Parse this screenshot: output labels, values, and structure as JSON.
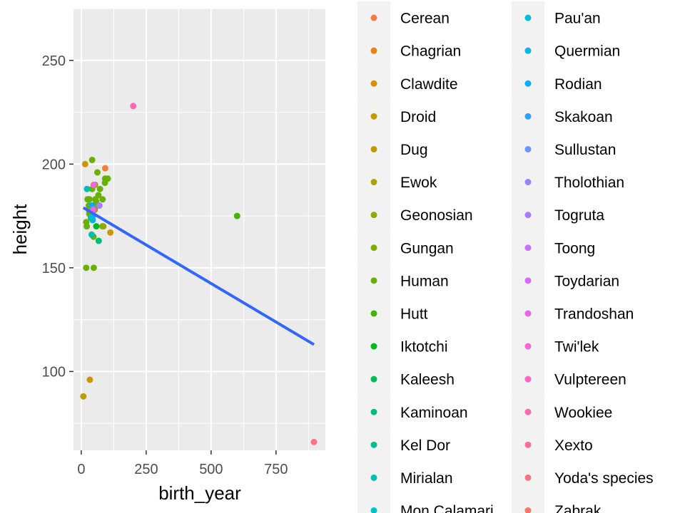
{
  "chart_data": {
    "type": "scatter",
    "xlabel": "birth_year",
    "ylabel": "height",
    "xlim": [
      -30,
      940
    ],
    "ylim": [
      62,
      275
    ],
    "x_ticks": [
      0,
      250,
      500,
      750
    ],
    "y_ticks": [
      100,
      150,
      200,
      250
    ],
    "grid": true,
    "panel_background": "#EBEBEB",
    "grid_color": "#FFFFFF",
    "legend_position": "right",
    "legend_ncol": 2,
    "legend": [
      {
        "name": "Cerean",
        "color": "#F07F44"
      },
      {
        "name": "Chagrian",
        "color": "#E88512"
      },
      {
        "name": "Clawdite",
        "color": "#DA8E00"
      },
      {
        "name": "Droid",
        "color": "#CC9600"
      },
      {
        "name": "Dug",
        "color": "#BC9D00"
      },
      {
        "name": "Ewok",
        "color": "#ABA300"
      },
      {
        "name": "Geonosian",
        "color": "#98A800"
      },
      {
        "name": "Gungan",
        "color": "#82AD00"
      },
      {
        "name": "Human",
        "color": "#68B100"
      },
      {
        "name": "Hutt",
        "color": "#40B400"
      },
      {
        "name": "Iktotchi",
        "color": "#00B81F"
      },
      {
        "name": "Kaleesh",
        "color": "#00BA55"
      },
      {
        "name": "Kaminoan",
        "color": "#00BC76"
      },
      {
        "name": "Kel Dor",
        "color": "#00BE93"
      },
      {
        "name": "Mirialan",
        "color": "#00BFAD"
      },
      {
        "name": "Mon Calamari",
        "color": "#00C0C4"
      },
      {
        "name": "Pau'an",
        "color": "#00BDD9"
      },
      {
        "name": "Quermian",
        "color": "#00B7EA"
      },
      {
        "name": "Rodian",
        "color": "#00AFF7"
      },
      {
        "name": "Skakoan",
        "color": "#29A3FF"
      },
      {
        "name": "Sullustan",
        "color": "#6B95FF"
      },
      {
        "name": "Tholothian",
        "color": "#8F88FF"
      },
      {
        "name": "Togruta",
        "color": "#AC7CFF"
      },
      {
        "name": "Toong",
        "color": "#C472FF"
      },
      {
        "name": "Toydarian",
        "color": "#D86BF5"
      },
      {
        "name": "Trandoshan",
        "color": "#E867E8"
      },
      {
        "name": "Twi'lek",
        "color": "#F466D8"
      },
      {
        "name": "Vulptereen",
        "color": "#FB66C6"
      },
      {
        "name": "Wookiee",
        "color": "#FF68B2"
      },
      {
        "name": "Xexto",
        "color": "#FF6C9C"
      },
      {
        "name": "Yoda's species",
        "color": "#FC7284"
      },
      {
        "name": "Zabrak",
        "color": "#F7786A"
      }
    ],
    "points": [
      {
        "x": 19,
        "y": 172,
        "color": "#68B100"
      },
      {
        "x": 112,
        "y": 167,
        "color": "#CC9600"
      },
      {
        "x": 33,
        "y": 96,
        "color": "#CC9600"
      },
      {
        "x": 41.9,
        "y": 202,
        "color": "#68B100"
      },
      {
        "x": 19,
        "y": 150,
        "color": "#68B100"
      },
      {
        "x": 52,
        "y": 178,
        "color": "#68B100"
      },
      {
        "x": 47,
        "y": 165,
        "color": "#68B100"
      },
      {
        "x": 24,
        "y": 183,
        "color": "#68B100"
      },
      {
        "x": 57,
        "y": 182,
        "color": "#68B100"
      },
      {
        "x": 41.9,
        "y": 188,
        "color": "#68B100"
      },
      {
        "x": 64,
        "y": 180,
        "color": "#68B100"
      },
      {
        "x": 200,
        "y": 228,
        "color": "#FF68B2"
      },
      {
        "x": 29,
        "y": 180,
        "color": "#68B100"
      },
      {
        "x": 44,
        "y": 173,
        "color": "#00AFF7"
      },
      {
        "x": 600,
        "y": 175,
        "color": "#40B400"
      },
      {
        "x": 21,
        "y": 170,
        "color": "#68B100"
      },
      {
        "x": 896,
        "y": 66,
        "color": "#FC7284"
      },
      {
        "x": 82,
        "y": 170,
        "color": "#68B100"
      },
      {
        "x": 31.5,
        "y": 183,
        "color": "#68B100"
      },
      {
        "x": 15,
        "y": 200,
        "color": "#CC9600"
      },
      {
        "x": 53,
        "y": 190,
        "color": "#68B100"
      },
      {
        "x": 31,
        "y": 177,
        "color": "#68B100"
      },
      {
        "x": 37,
        "y": 175,
        "color": "#68B100"
      },
      {
        "x": 41,
        "y": 180,
        "color": "#00AFF7"
      },
      {
        "x": 48,
        "y": 150,
        "color": "#68B100"
      },
      {
        "x": 8,
        "y": 88,
        "color": "#BC9D00"
      },
      {
        "x": 92,
        "y": 193,
        "color": "#68B100"
      },
      {
        "x": 91,
        "y": 191,
        "color": "#68B100"
      },
      {
        "x": 62,
        "y": 196,
        "color": "#68B100"
      },
      {
        "x": 72,
        "y": 188,
        "color": "#68B100"
      },
      {
        "x": 54,
        "y": 183,
        "color": "#68B100"
      },
      {
        "x": 48,
        "y": 178,
        "color": "#68B100"
      },
      {
        "x": 29,
        "y": 183,
        "color": "#68B100"
      },
      {
        "x": 102,
        "y": 193,
        "color": "#68B100"
      },
      {
        "x": 67,
        "y": 163,
        "color": "#00BC76"
      },
      {
        "x": 66,
        "y": 185,
        "color": "#68B100"
      },
      {
        "x": 40,
        "y": 166,
        "color": "#00BFAD"
      },
      {
        "x": 92,
        "y": 198,
        "color": "#F07F44"
      },
      {
        "x": 22,
        "y": 188,
        "color": "#00BFAD"
      },
      {
        "x": 82,
        "y": 183,
        "color": "#68B100"
      },
      {
        "x": 46,
        "y": 178,
        "color": "#F466D8"
      },
      {
        "x": 58,
        "y": 170,
        "color": "#00B81F"
      },
      {
        "x": 48,
        "y": 190,
        "color": "#F466D8"
      },
      {
        "x": 40,
        "y": 175,
        "color": "#00BE93"
      },
      {
        "x": 31,
        "y": 176,
        "color": "#68B100"
      },
      {
        "x": 70,
        "y": 180,
        "color": "#AC7CFF"
      },
      {
        "x": 85,
        "y": 170,
        "color": "#98A800"
      },
      {
        "x": 37,
        "y": 174,
        "color": "#00BFAD"
      },
      {
        "x": 45,
        "y": 175,
        "color": "#00B7EA"
      }
    ],
    "smooth": {
      "method": "lm",
      "x": [
        8,
        896
      ],
      "y": [
        179,
        113
      ],
      "color": "#3366FF"
    }
  }
}
